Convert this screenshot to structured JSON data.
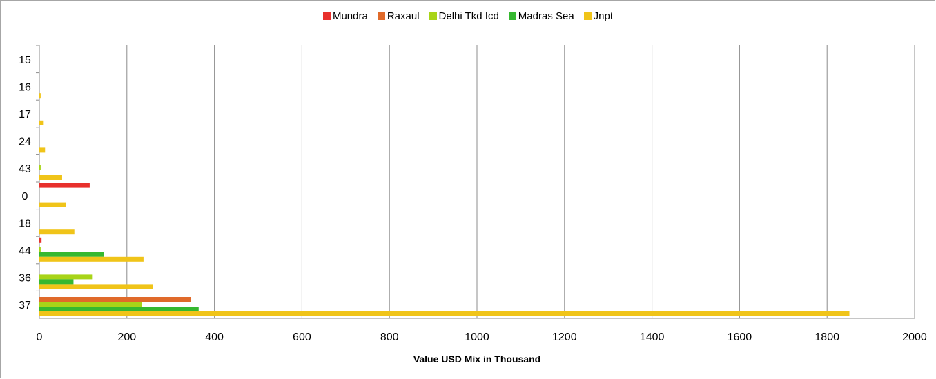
{
  "chart_data": {
    "type": "bar",
    "orientation": "horizontal",
    "categories": [
      "37",
      "36",
      "44",
      "18",
      "0",
      "43",
      "24",
      "17",
      "16",
      "15"
    ],
    "series": [
      {
        "name": "Mundra",
        "color": "#e8302c",
        "values": [
          0,
          0,
          5,
          0,
          115,
          0,
          0,
          0,
          0,
          0
        ]
      },
      {
        "name": "Raxaul",
        "color": "#e06a2a",
        "values": [
          347,
          0,
          0,
          0,
          0,
          0,
          0,
          0,
          0,
          0
        ]
      },
      {
        "name": "Delhi Tkd Icd",
        "color": "#a8d418",
        "values": [
          235,
          122,
          3,
          0,
          0,
          3,
          0,
          0,
          0,
          0
        ]
      },
      {
        "name": "Madras Sea",
        "color": "#36b830",
        "values": [
          364,
          78,
          147,
          0,
          0,
          0,
          0,
          0,
          0,
          0
        ]
      },
      {
        "name": "Jnpt",
        "color": "#f0c419",
        "values": [
          1851,
          259,
          238,
          80,
          60,
          52,
          13,
          10,
          3,
          0
        ]
      }
    ],
    "xlabel": "Value USD Mix in Thousand",
    "ylabel": "",
    "xlim": [
      0,
      2000
    ],
    "xticks": [
      "0",
      "200",
      "400",
      "600",
      "800",
      "1000",
      "1200",
      "1400",
      "1600",
      "1800",
      "2000"
    ],
    "grid": "vertical",
    "legend_position": "top"
  }
}
